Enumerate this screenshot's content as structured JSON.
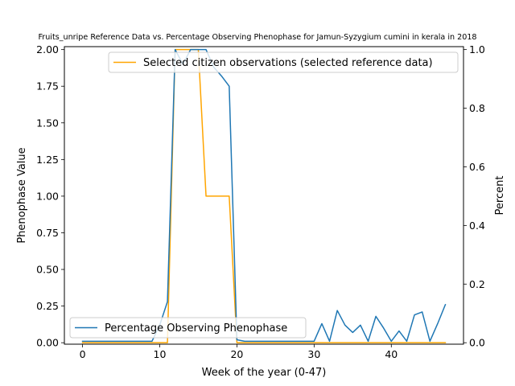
{
  "chart_data": {
    "type": "line",
    "title": "Fruits_unripe Reference Data vs. Percentage Observing Phenophase for Jamun-Syzygium cumini in kerala in 2018",
    "xlabel": "Week of the year (0-47)",
    "ylabel_left": "Phenophase Value",
    "ylabel_right": "Percent",
    "xlim": [
      -2.35,
      49.35
    ],
    "ylim_left": [
      -0.01,
      2.02
    ],
    "ylim_right": [
      -0.005,
      1.01
    ],
    "x_ticks": [
      0,
      10,
      20,
      30,
      40
    ],
    "y_ticks_left": [
      "0.00",
      "0.25",
      "0.50",
      "0.75",
      "1.00",
      "1.25",
      "1.50",
      "1.75",
      "2.00"
    ],
    "y_ticks_right": [
      "0.0",
      "0.2",
      "0.4",
      "0.6",
      "0.8",
      "1.0"
    ],
    "legend_placement": "upper right; lower left",
    "grid": false,
    "series": [
      {
        "name": "Selected citizen observations (selected reference data)",
        "axis": "left",
        "color": "#ffa500",
        "x": [
          0,
          1,
          2,
          3,
          4,
          5,
          6,
          7,
          8,
          9,
          10,
          11,
          12,
          13,
          14,
          15,
          16,
          17,
          18,
          19,
          20,
          21,
          22,
          23,
          24,
          25,
          26,
          27,
          28,
          29,
          30,
          31,
          32,
          33,
          34,
          35,
          36,
          37,
          38,
          39,
          40,
          41,
          42,
          43,
          44,
          45,
          46,
          47
        ],
        "values": [
          0,
          0,
          0,
          0,
          0,
          0,
          0,
          0,
          0,
          0,
          0,
          0,
          2,
          2,
          2,
          2,
          1,
          1,
          1,
          1,
          0,
          0,
          0,
          0,
          0,
          0,
          0,
          0,
          0,
          0,
          0,
          0,
          0,
          0,
          0,
          0,
          0,
          0,
          0,
          0,
          0,
          0,
          0,
          0,
          0,
          0,
          0,
          0
        ]
      },
      {
        "name": "Percentage Observing Phenophase",
        "axis": "right",
        "color": "#1f77b4",
        "x": [
          0,
          1,
          2,
          3,
          4,
          5,
          6,
          7,
          8,
          9,
          10,
          11,
          12,
          13,
          14,
          15,
          16,
          17,
          18,
          19,
          20,
          21,
          22,
          23,
          24,
          25,
          26,
          27,
          28,
          29,
          30,
          31,
          32,
          33,
          34,
          35,
          36,
          37,
          38,
          39,
          40,
          41,
          42,
          43,
          44,
          45,
          46,
          47
        ],
        "values": [
          0.005,
          0.005,
          0.005,
          0.005,
          0.005,
          0.005,
          0.005,
          0.005,
          0.005,
          0.005,
          0.06,
          0.14,
          1.0,
          0.95,
          1.0,
          1.0,
          1.0,
          0.94,
          0.91,
          0.875,
          0.01,
          0.005,
          0.005,
          0.005,
          0.005,
          0.005,
          0.005,
          0.005,
          0.005,
          0.005,
          0.005,
          0.065,
          0.005,
          0.11,
          0.06,
          0.035,
          0.06,
          0.005,
          0.09,
          0.05,
          0.005,
          0.04,
          0.005,
          0.095,
          0.105,
          0.005,
          0.065,
          0.13
        ]
      }
    ]
  }
}
